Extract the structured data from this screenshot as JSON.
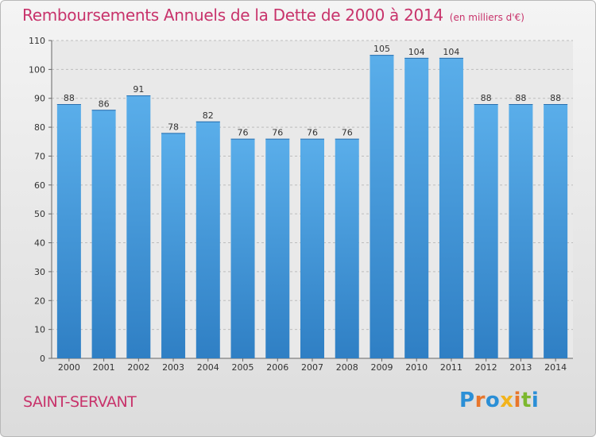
{
  "chart_data": {
    "type": "bar",
    "title": "Remboursements Annuels de la Dette de 2000 à 2014",
    "subtitle": "(en milliers d'€)",
    "categories": [
      "2000",
      "2001",
      "2002",
      "2003",
      "2004",
      "2005",
      "2006",
      "2007",
      "2008",
      "2009",
      "2010",
      "2011",
      "2012",
      "2013",
      "2014"
    ],
    "values": [
      88,
      86,
      91,
      78,
      82,
      76,
      76,
      76,
      76,
      105,
      104,
      104,
      88,
      88,
      88
    ],
    "ylim": [
      0,
      110
    ],
    "yticks": [
      0,
      10,
      20,
      30,
      40,
      50,
      60,
      70,
      80,
      90,
      100,
      110
    ],
    "grid": true,
    "xlabel": "",
    "ylabel": "",
    "bar_color": "#4a9fe0"
  },
  "footer": {
    "commune": "SAINT-SERVANT",
    "logo_text": "Proxiti",
    "logo_colors": [
      "#2b8fd6",
      "#e8762c",
      "#2b8fd6",
      "#f2b31c",
      "#e8762c",
      "#7cb82f",
      "#2b8fd6"
    ]
  }
}
